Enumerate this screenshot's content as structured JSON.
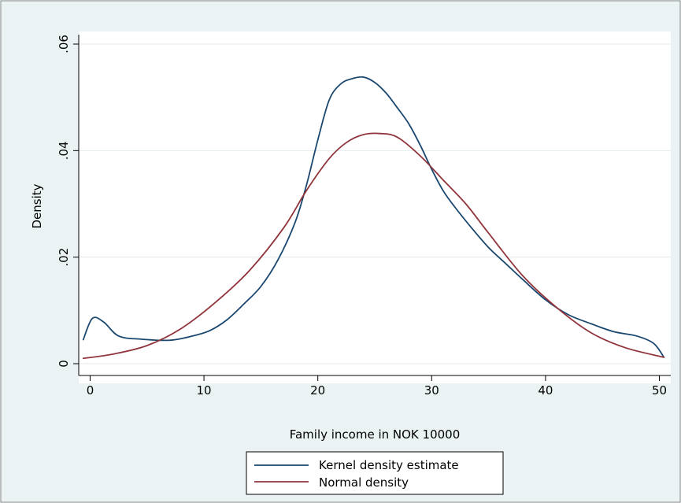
{
  "chart_data": {
    "type": "line",
    "title": "",
    "xlabel": "Family income in NOK 10000",
    "ylabel": "Density",
    "xlim": [
      -1,
      51
    ],
    "ylim": [
      0,
      0.06
    ],
    "xticks": [
      0,
      10,
      20,
      30,
      40,
      50
    ],
    "xtick_labels": [
      "0",
      "10",
      "20",
      "30",
      "40",
      "50"
    ],
    "yticks": [
      0,
      0.02,
      0.04,
      0.06
    ],
    "ytick_labels": [
      "0",
      ".02",
      ".04",
      ".06"
    ],
    "grid": "horizontal",
    "legend_position": "bottom",
    "series": [
      {
        "name": "Kernel density estimate",
        "color": "#1a476f",
        "x": [
          -0.6,
          0.2,
          1.2,
          2.5,
          4.5,
          7,
          9,
          10.5,
          12,
          13.5,
          15,
          16.5,
          18,
          19,
          20,
          21,
          22,
          23,
          24,
          25,
          26,
          27,
          28,
          29,
          30,
          31,
          32,
          33.5,
          35,
          36.5,
          38,
          40,
          42,
          44,
          46,
          48,
          49.5,
          50.4
        ],
        "y": [
          0.0045,
          0.0085,
          0.0078,
          0.0052,
          0.0046,
          0.0044,
          0.0052,
          0.0062,
          0.0082,
          0.0112,
          0.0145,
          0.0195,
          0.0265,
          0.0335,
          0.042,
          0.0495,
          0.0525,
          0.0535,
          0.0538,
          0.0528,
          0.0508,
          0.048,
          0.045,
          0.041,
          0.0365,
          0.0325,
          0.0295,
          0.0255,
          0.0218,
          0.0188,
          0.0158,
          0.012,
          0.0092,
          0.0075,
          0.006,
          0.0052,
          0.0038,
          0.0012
        ]
      },
      {
        "name": "Normal density",
        "color": "#90353b",
        "x": [
          -0.6,
          2,
          5,
          8,
          11,
          14,
          17,
          19,
          21,
          22.5,
          24,
          25.5,
          27,
          29,
          31,
          33,
          35,
          38,
          41,
          44,
          47,
          50.4
        ],
        "y": [
          0.001,
          0.0018,
          0.0034,
          0.0066,
          0.0115,
          0.0175,
          0.0255,
          0.0325,
          0.0385,
          0.0415,
          0.043,
          0.0432,
          0.0425,
          0.039,
          0.0345,
          0.03,
          0.0245,
          0.0165,
          0.0105,
          0.0058,
          0.003,
          0.0012
        ]
      }
    ]
  }
}
